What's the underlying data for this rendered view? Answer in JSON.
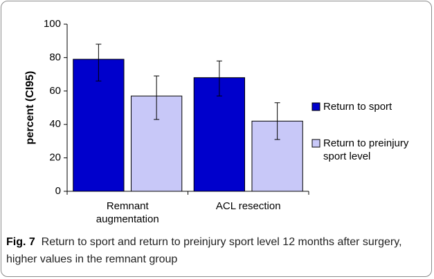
{
  "chart_data": {
    "type": "bar",
    "y_label": "percent (CI95)",
    "caption_label": "Fig. 7",
    "caption": "Return to sport and return to preinjury sport level 12 months after surgery, higher values in the remnant group",
    "categories": [
      "Remnant augmentation",
      "ACL resection"
    ],
    "series": [
      {
        "name": "Return to sport",
        "color": "#0000cc",
        "values": [
          79,
          68
        ],
        "ci_low": [
          66,
          57
        ],
        "ci_high": [
          88,
          78
        ]
      },
      {
        "name": "Return to preinjury sport level",
        "color": "#c8c8f8",
        "values": [
          57,
          42
        ],
        "ci_low": [
          43,
          31
        ],
        "ci_high": [
          69,
          53
        ]
      }
    ],
    "ylim": [
      0,
      100
    ],
    "yticks": [
      0,
      20,
      40,
      60,
      80,
      100
    ],
    "legend": "right"
  }
}
